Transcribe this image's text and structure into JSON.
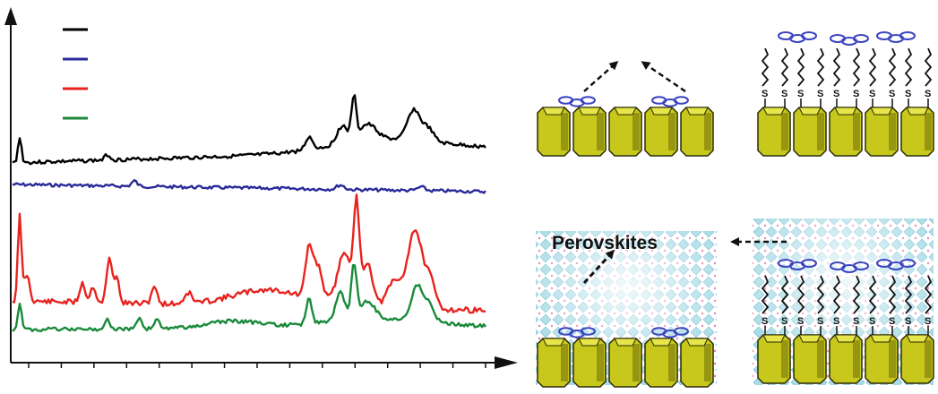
{
  "plot": {
    "legend": [
      {
        "color": "#000000"
      },
      {
        "color": "#2a2a9a"
      },
      {
        "color": "#e8231e"
      },
      {
        "color": "#1a8a3a"
      }
    ],
    "axes": {
      "x_arrow": true,
      "y_arrow": true,
      "x_ticks": 15
    }
  },
  "scheme": {
    "label": "Perovskites",
    "sulfur_symbol": "S",
    "colors": {
      "crystal_face": "#c8c81c",
      "crystal_side": "#8a8a10",
      "crystal_top": "#e6e64a",
      "molecule": "#3a44c0",
      "perovskite": "#8fd0de"
    },
    "panels": [
      {
        "position": "top-left",
        "crystals": 5,
        "molecules": "lying-flat",
        "perovskite": false
      },
      {
        "position": "top-right",
        "crystals": 5,
        "molecules": "thiol-anchored",
        "perovskite": false
      },
      {
        "position": "bottom-left",
        "crystals": 5,
        "molecules": "lying-flat",
        "perovskite": true
      },
      {
        "position": "bottom-right",
        "crystals": 5,
        "molecules": "thiol-anchored",
        "perovskite": true
      }
    ]
  }
}
